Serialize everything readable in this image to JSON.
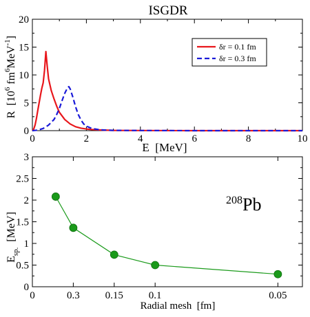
{
  "chart_data": [
    {
      "type": "line",
      "title": "ISGDR",
      "xlabel": "E  [MeV]",
      "ylabel": "R  [10",
      "ylabel_sup1": "6",
      "ylabel_mid": " fm",
      "ylabel_sup2": "6",
      "ylabel_end": "MeV",
      "ylabel_sup3": "-1",
      "ylabel_close": "]",
      "xlim": [
        0,
        10
      ],
      "ylim": [
        0,
        20
      ],
      "xticks": [
        "0",
        "2",
        "4",
        "6",
        "8",
        "10"
      ],
      "yticks": [
        "0",
        "5",
        "10",
        "15",
        "20"
      ],
      "legend_position": "top-right",
      "series": [
        {
          "name": "δr = 0.1 fm",
          "color": "#e8161b",
          "dash": "solid",
          "x": [
            0,
            0.05,
            0.1,
            0.15,
            0.2,
            0.25,
            0.3,
            0.35,
            0.4,
            0.45,
            0.5,
            0.55,
            0.6,
            0.7,
            0.8,
            0.9,
            1.0,
            1.2,
            1.4,
            1.6,
            1.8,
            2.0,
            2.2,
            2.5,
            3.0,
            4.0,
            6.0,
            8.0,
            10.0
          ],
          "y": [
            0,
            0.3,
            1.0,
            2.2,
            3.6,
            5.0,
            6.4,
            7.6,
            8.6,
            10.8,
            14.2,
            11.5,
            9.3,
            7.2,
            5.7,
            4.4,
            3.3,
            2.0,
            1.2,
            0.7,
            0.45,
            0.3,
            0.2,
            0.12,
            0.05,
            0.02,
            0.0,
            0.0,
            0.0
          ]
        },
        {
          "name": "δr = 0.3 fm",
          "color": "#1a1ad8",
          "dash": "dashed",
          "x": [
            0,
            0.2,
            0.4,
            0.6,
            0.8,
            0.9,
            1.0,
            1.1,
            1.2,
            1.3,
            1.35,
            1.4,
            1.5,
            1.6,
            1.7,
            1.8,
            1.9,
            2.0,
            2.2,
            2.5,
            3.0,
            4.0,
            6.0,
            8.0,
            10.0
          ],
          "y": [
            0,
            0.1,
            0.4,
            1.0,
            2.0,
            2.9,
            4.0,
            5.4,
            6.7,
            7.7,
            7.9,
            7.5,
            6.0,
            4.3,
            2.9,
            1.9,
            1.2,
            0.8,
            0.4,
            0.15,
            0.05,
            0.02,
            0.0,
            0.0,
            0.0
          ]
        }
      ]
    },
    {
      "type": "line",
      "xlabel": "Radial mesh  [fm]",
      "ylabel": "E",
      "ylabel_sub": "sp.",
      "ylabel_units": "  [MeV]",
      "annotation_sup": "208",
      "annotation": "Pb",
      "ylim": [
        0,
        3
      ],
      "yticks": [
        "0",
        "0.5",
        "1",
        "1.5",
        "2",
        "2.5",
        "3"
      ],
      "xticks": [
        "0",
        "0.3",
        "0.15",
        "0.1",
        "0.05"
      ],
      "xlim": [
        0,
        0.07
      ],
      "xtick_positions_inverse_fm": [
        0,
        3.3333,
        6.6667,
        10,
        20
      ],
      "color": "#1a9a1a",
      "series": [
        {
          "x_inverse_fm": [
            1.9,
            3.3333,
            6.6667,
            10,
            20
          ],
          "y": [
            2.08,
            1.36,
            0.74,
            0.5,
            0.29
          ]
        }
      ]
    }
  ]
}
